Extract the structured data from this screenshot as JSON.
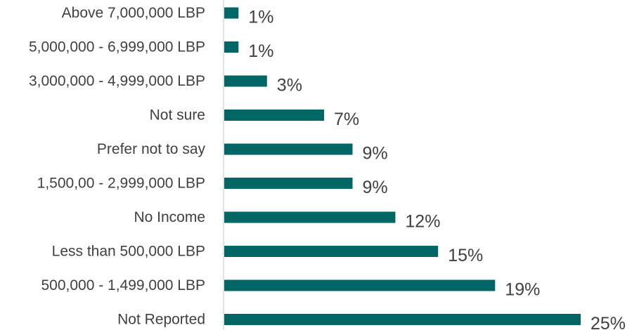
{
  "chart_data": {
    "type": "bar",
    "orientation": "horizontal",
    "title": "",
    "xlabel": "",
    "ylabel": "",
    "categories": [
      "Above 7,000,000 LBP",
      "5,000,000 - 6,999,000 LBP",
      "3,000,000 - 4,999,000 LBP",
      "Not sure",
      "Prefer not to say",
      "1,500,00 - 2,999,000 LBP",
      "No Income",
      "Less than 500,000 LBP",
      "500,000 - 1,499,000 LBP",
      "Not Reported"
    ],
    "values": [
      1,
      1,
      3,
      7,
      9,
      9,
      12,
      15,
      19,
      25
    ],
    "value_labels": [
      "1%",
      "1%",
      "3%",
      "7%",
      "9%",
      "9%",
      "12%",
      "15%",
      "19%",
      "25%"
    ],
    "unit": "%",
    "xlim": [
      0,
      25
    ],
    "grid": false,
    "legend": "none",
    "colors": {
      "bar": "#006666",
      "axis": "#d9d9d9",
      "text": "#404040"
    }
  }
}
